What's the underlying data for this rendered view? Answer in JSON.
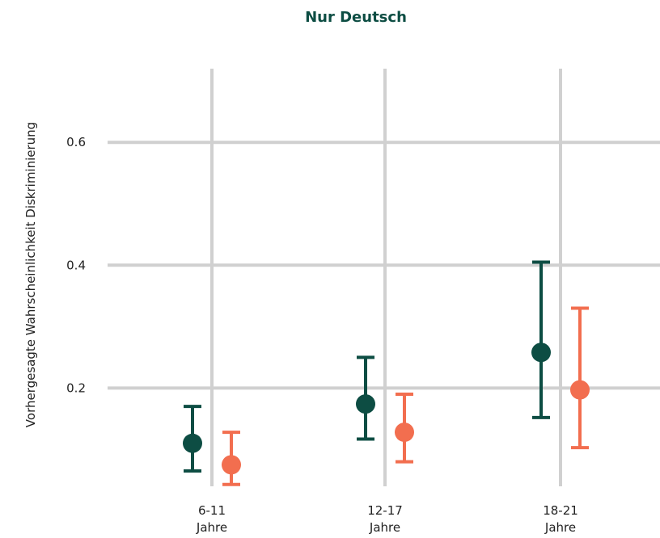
{
  "chart_data": {
    "type": "scatter",
    "title": "Nur Deutsch",
    "ylabel": "Vorhergesagte Wahrscheinlichkeit Diskriminierung",
    "xlabel": "",
    "ylim": [
      0.04,
      0.72
    ],
    "yticks": [
      0.2,
      0.4,
      0.6
    ],
    "ytick_labels": [
      "0.2",
      "0.4",
      "0.6"
    ],
    "categories": [
      {
        "line1": "6-11",
        "line2": "Jahre"
      },
      {
        "line1": "12-17",
        "line2": "Jahre"
      },
      {
        "line1": "18-21",
        "line2": "Jahre"
      }
    ],
    "grid": true,
    "legend": "none",
    "series": [
      {
        "color": "#0d4d43",
        "points": [
          {
            "y": 0.11,
            "lower": 0.065,
            "upper": 0.17
          },
          {
            "y": 0.174,
            "lower": 0.117,
            "upper": 0.25
          },
          {
            "y": 0.258,
            "lower": 0.152,
            "upper": 0.405
          }
        ]
      },
      {
        "color": "#f26e4f",
        "points": [
          {
            "y": 0.075,
            "lower": 0.043,
            "upper": 0.128
          },
          {
            "y": 0.128,
            "lower": 0.08,
            "upper": 0.19
          },
          {
            "y": 0.197,
            "lower": 0.103,
            "upper": 0.33
          }
        ]
      }
    ],
    "title_color": "#0d4d43",
    "grid_color": "#d0d0d0"
  }
}
